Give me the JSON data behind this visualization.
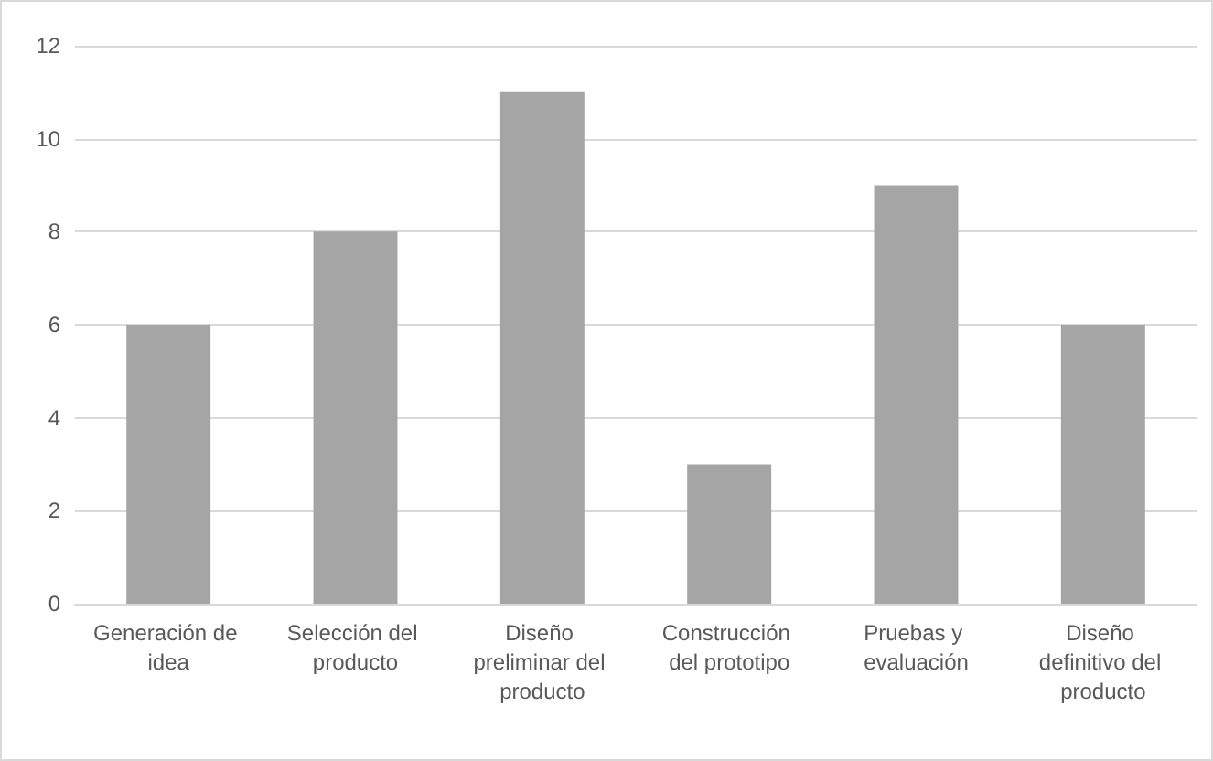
{
  "chart_data": {
    "type": "bar",
    "categories": [
      "Generación de idea",
      "Selección del producto",
      "Diseño preliminar del producto",
      "Construcción del prototipo",
      "Pruebas y evaluación",
      "Diseño definitivo del producto"
    ],
    "values": [
      6,
      8,
      11,
      3,
      9,
      6
    ],
    "color": "#a5a5a5",
    "ylim": [
      0,
      12
    ],
    "yticks": [
      0,
      2,
      4,
      6,
      8,
      10,
      12
    ],
    "grid": "y"
  }
}
